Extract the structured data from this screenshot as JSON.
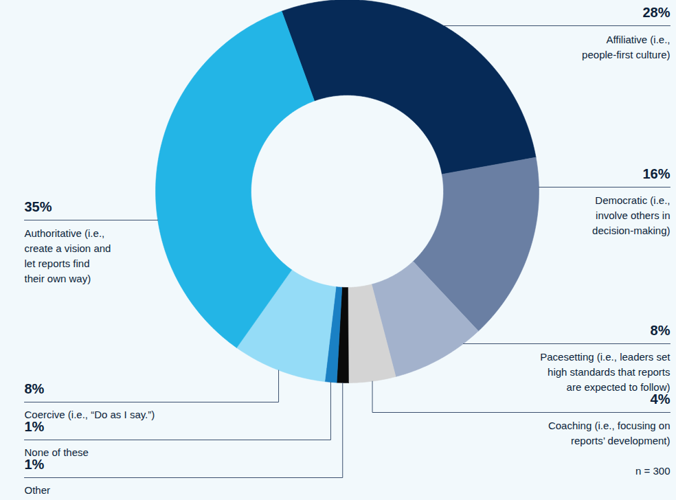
{
  "chart_data": {
    "type": "pie",
    "categories": [
      "Affiliative (i.e., people-first culture)",
      "Democratic (i.e., involve others in decision-making)",
      "Pacesetting (i.e., leaders set high standards that reports are expected to follow)",
      "Coaching (i.e., focusing on reports’ development)",
      "Other",
      "None of these",
      "Coercive (i.e., “Do as I say.”)",
      "Authoritative (i.e., create a vision and let reports find their own way)"
    ],
    "values": [
      28,
      16,
      8,
      4,
      1,
      1,
      8,
      35
    ],
    "value_labels": [
      "28%",
      "16%",
      "8%",
      "4%",
      "1%",
      "1%",
      "8%",
      "35%"
    ],
    "colors": [
      "#062a57",
      "#6a7fa3",
      "#a3b2cc",
      "#d4d4d4",
      "#0a0a0a",
      "#1a80c4",
      "#95dcf7",
      "#23b5e6"
    ],
    "data_labels": true,
    "note": "n = 300"
  }
}
